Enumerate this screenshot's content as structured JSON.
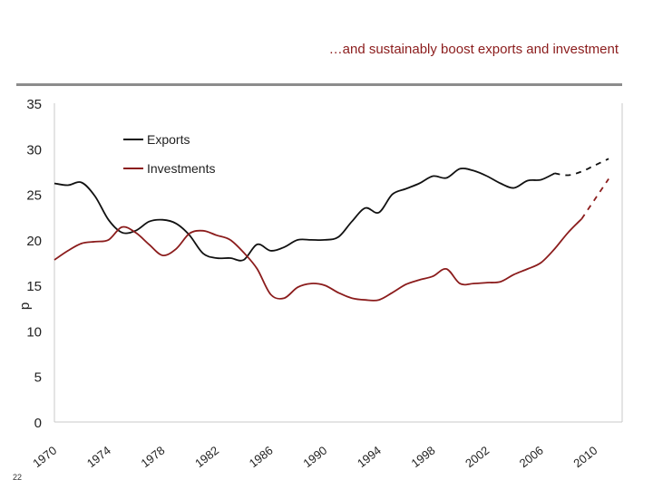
{
  "slide": {
    "title": "…and sustainably boost exports and investment",
    "page_number": "22"
  },
  "colors": {
    "exports": "#111111",
    "investments": "#8b1c1c",
    "axis": "#c8c8c8",
    "rule": "#8c8c8c"
  },
  "chart_data": {
    "type": "line",
    "title": "",
    "xlabel": "",
    "ylabel": "p",
    "xlim": [
      1970,
      2012
    ],
    "ylim": [
      0,
      35
    ],
    "y_ticks": [
      0,
      5,
      10,
      15,
      20,
      25,
      30,
      35
    ],
    "x_ticks": [
      1970,
      1974,
      1978,
      1982,
      1986,
      1990,
      1994,
      1998,
      2002,
      2006,
      2010
    ],
    "x_tick_labels": [
      "1970",
      "1974",
      "1978",
      "1982",
      "1986",
      "1990",
      "1994",
      "1998",
      "2002",
      "2006",
      "2010"
    ],
    "grid": false,
    "legend": "top-left",
    "series": [
      {
        "name": "Exports",
        "values_actual": [
          [
            1970,
            26.2
          ],
          [
            1971,
            26.0
          ],
          [
            1972,
            26.3
          ],
          [
            1973,
            24.8
          ],
          [
            1974,
            22.2
          ],
          [
            1975,
            20.8
          ],
          [
            1976,
            21.0
          ],
          [
            1977,
            22.0
          ],
          [
            1978,
            22.2
          ],
          [
            1979,
            21.8
          ],
          [
            1980,
            20.5
          ],
          [
            1981,
            18.5
          ],
          [
            1982,
            18.0
          ],
          [
            1983,
            18.0
          ],
          [
            1984,
            17.8
          ],
          [
            1985,
            19.5
          ],
          [
            1986,
            18.8
          ],
          [
            1987,
            19.2
          ],
          [
            1988,
            20.0
          ],
          [
            1989,
            20.0
          ],
          [
            1990,
            20.0
          ],
          [
            1991,
            20.3
          ],
          [
            1992,
            22.0
          ],
          [
            1993,
            23.5
          ],
          [
            1994,
            23.0
          ],
          [
            1995,
            25.0
          ],
          [
            1996,
            25.6
          ],
          [
            1997,
            26.2
          ],
          [
            1998,
            27.0
          ],
          [
            1999,
            26.8
          ],
          [
            2000,
            27.8
          ],
          [
            2001,
            27.6
          ],
          [
            2002,
            27.0
          ],
          [
            2003,
            26.2
          ],
          [
            2004,
            25.7
          ],
          [
            2005,
            26.5
          ],
          [
            2006,
            26.6
          ],
          [
            2007,
            27.3
          ]
        ],
        "values_forecast": [
          [
            2007,
            27.3
          ],
          [
            2008,
            27.1
          ],
          [
            2009,
            27.5
          ],
          [
            2010,
            28.2
          ],
          [
            2011,
            28.9
          ]
        ]
      },
      {
        "name": "Investments",
        "values_actual": [
          [
            1970,
            17.8
          ],
          [
            1971,
            18.8
          ],
          [
            1972,
            19.6
          ],
          [
            1973,
            19.8
          ],
          [
            1974,
            20.0
          ],
          [
            1975,
            21.4
          ],
          [
            1976,
            20.8
          ],
          [
            1977,
            19.5
          ],
          [
            1978,
            18.3
          ],
          [
            1979,
            19.0
          ],
          [
            1980,
            20.7
          ],
          [
            1981,
            21.0
          ],
          [
            1982,
            20.5
          ],
          [
            1983,
            20.0
          ],
          [
            1984,
            18.6
          ],
          [
            1985,
            16.8
          ],
          [
            1986,
            14.0
          ],
          [
            1987,
            13.6
          ],
          [
            1988,
            14.8
          ],
          [
            1989,
            15.2
          ],
          [
            1990,
            15.0
          ],
          [
            1991,
            14.2
          ],
          [
            1992,
            13.6
          ],
          [
            1993,
            13.4
          ],
          [
            1994,
            13.4
          ],
          [
            1995,
            14.2
          ],
          [
            1996,
            15.1
          ],
          [
            1997,
            15.6
          ],
          [
            1998,
            16.0
          ],
          [
            1999,
            16.8
          ],
          [
            2000,
            15.2
          ],
          [
            2001,
            15.2
          ],
          [
            2002,
            15.3
          ],
          [
            2003,
            15.4
          ],
          [
            2004,
            16.2
          ],
          [
            2005,
            16.8
          ],
          [
            2006,
            17.5
          ],
          [
            2007,
            19.0
          ],
          [
            2008,
            20.8
          ],
          [
            2009,
            22.3
          ]
        ],
        "values_forecast": [
          [
            2009,
            22.3
          ],
          [
            2010,
            24.5
          ],
          [
            2011,
            26.7
          ]
        ]
      }
    ]
  }
}
